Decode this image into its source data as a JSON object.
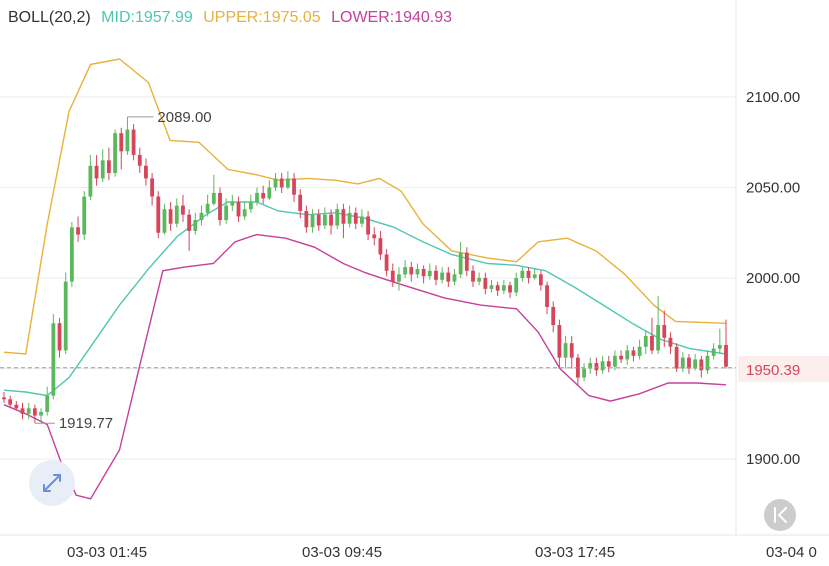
{
  "legend": {
    "name": "BOLL(20,2)",
    "mid": "MID:1957.99",
    "upper": "UPPER:1975.05",
    "lower": "LOWER:1940.93"
  },
  "colors": {
    "up": "#5cb85c",
    "down": "#d6455a",
    "mid": "#4fc7b0",
    "upper": "#e8b23a",
    "lower": "#c5409a",
    "grid": "#eeeeee",
    "text": "#333333"
  },
  "annotations": {
    "high_label": "2089.00",
    "low_label": "1919.77",
    "last_price": "1950.39"
  },
  "controls": {
    "expand_icon": "expand-arrows-icon",
    "back_icon": "back-to-start-icon"
  },
  "chart_data": {
    "type": "candlestick",
    "title": "BOLL(20,2)",
    "y_axis": {
      "ticks": [
        "1900.00",
        "1950.00",
        "2000.00",
        "2050.00",
        "2100.00"
      ],
      "ylim": [
        1875,
        2135
      ],
      "position": "right"
    },
    "x_axis": {
      "ticks": [
        "03-03 01:45",
        "03-03 09:45",
        "03-03 17:45",
        "03-04 0"
      ]
    },
    "grid": true,
    "high": 2089.0,
    "low": 1919.77,
    "last": 1950.39,
    "candles": [
      [
        1934,
        1933,
        1937,
        1931
      ],
      [
        1933,
        1930,
        1935,
        1929
      ],
      [
        1930,
        1928,
        1932,
        1927
      ],
      [
        1928,
        1925,
        1931,
        1922
      ],
      [
        1925,
        1928,
        1931,
        1922
      ],
      [
        1928,
        1924,
        1930,
        1920
      ],
      [
        1924,
        1926,
        1928,
        1921
      ],
      [
        1926,
        1935,
        1940,
        1924
      ],
      [
        1935,
        1975,
        1980,
        1933
      ],
      [
        1975,
        1960,
        1978,
        1956
      ],
      [
        1960,
        1998,
        2003,
        1958
      ],
      [
        1998,
        2028,
        2031,
        1995
      ],
      [
        2028,
        2024,
        2034,
        2020
      ],
      [
        2024,
        2045,
        2048,
        2021
      ],
      [
        2045,
        2062,
        2068,
        2043
      ],
      [
        2062,
        2055,
        2068,
        2051
      ],
      [
        2055,
        2065,
        2071,
        2053
      ],
      [
        2065,
        2058,
        2072,
        2054
      ],
      [
        2058,
        2080,
        2082,
        2056
      ],
      [
        2080,
        2070,
        2083,
        2060
      ],
      [
        2070,
        2082,
        2089,
        2068
      ],
      [
        2082,
        2068,
        2085,
        2065
      ],
      [
        2068,
        2062,
        2072,
        2058
      ],
      [
        2062,
        2055,
        2066,
        2051
      ],
      [
        2055,
        2045,
        2058,
        2040
      ],
      [
        2045,
        2025,
        2048,
        2022
      ],
      [
        2025,
        2038,
        2041,
        2024
      ],
      [
        2038,
        2030,
        2042,
        2026
      ],
      [
        2030,
        2040,
        2044,
        2028
      ],
      [
        2040,
        2035,
        2046,
        2031
      ],
      [
        2035,
        2026,
        2038,
        2015
      ],
      [
        2026,
        2032,
        2036,
        2024
      ],
      [
        2032,
        2036,
        2040,
        2029
      ],
      [
        2036,
        2041,
        2046,
        2034
      ],
      [
        2041,
        2047,
        2057,
        2040
      ],
      [
        2047,
        2032,
        2050,
        2029
      ],
      [
        2032,
        2040,
        2044,
        2030
      ],
      [
        2040,
        2042,
        2046,
        2037
      ],
      [
        2042,
        2034,
        2045,
        2031
      ],
      [
        2034,
        2038,
        2042,
        2032
      ],
      [
        2038,
        2042,
        2046,
        2036
      ],
      [
        2042,
        2047,
        2050,
        2040
      ],
      [
        2047,
        2044,
        2051,
        2041
      ],
      [
        2044,
        2050,
        2054,
        2043
      ],
      [
        2050,
        2055,
        2058,
        2048
      ],
      [
        2055,
        2050,
        2058,
        2047
      ],
      [
        2050,
        2055,
        2059,
        2049
      ],
      [
        2055,
        2046,
        2058,
        2042
      ],
      [
        2046,
        2037,
        2049,
        2033
      ],
      [
        2037,
        2028,
        2040,
        2025
      ],
      [
        2028,
        2035,
        2038,
        2025
      ],
      [
        2035,
        2029,
        2038,
        2026
      ],
      [
        2029,
        2035,
        2039,
        2027
      ],
      [
        2035,
        2029,
        2038,
        2024
      ],
      [
        2029,
        2038,
        2041,
        2027
      ],
      [
        2038,
        2030,
        2041,
        2022
      ],
      [
        2030,
        2036,
        2040,
        2028
      ],
      [
        2036,
        2030,
        2039,
        2027
      ],
      [
        2030,
        2034,
        2038,
        2028
      ],
      [
        2034,
        2024,
        2037,
        2021
      ],
      [
        2024,
        2022,
        2028,
        2018
      ],
      [
        2022,
        2013,
        2026,
        2010
      ],
      [
        2013,
        2004,
        2016,
        2001
      ],
      [
        2004,
        1998,
        2008,
        1995
      ],
      [
        1998,
        2002,
        2006,
        1993
      ],
      [
        2002,
        2006,
        2010,
        2000
      ],
      [
        2006,
        2002,
        2009,
        1998
      ],
      [
        2002,
        2005,
        2008,
        2000
      ],
      [
        2005,
        2001,
        2007,
        1997
      ],
      [
        2001,
        2004,
        2008,
        1999
      ],
      [
        2004,
        1999,
        2007,
        1996
      ],
      [
        1999,
        2003,
        2006,
        1997
      ],
      [
        2003,
        1998,
        2006,
        1995
      ],
      [
        1998,
        2002,
        2005,
        1996
      ],
      [
        2002,
        2014,
        2020,
        2000
      ],
      [
        2014,
        2004,
        2017,
        2001
      ],
      [
        2004,
        1998,
        2007,
        1995
      ],
      [
        1998,
        2000,
        2003,
        1996
      ],
      [
        2000,
        1994,
        2003,
        1991
      ],
      [
        1994,
        1996,
        1999,
        1992
      ],
      [
        1996,
        1993,
        1998,
        1990
      ],
      [
        1993,
        1996,
        1999,
        1991
      ],
      [
        1996,
        1992,
        1998,
        1989
      ],
      [
        1992,
        2000,
        2003,
        1990
      ],
      [
        2000,
        2004,
        2006,
        1998
      ],
      [
        2004,
        2000,
        2006,
        1997
      ],
      [
        2000,
        2002,
        2005,
        1999
      ],
      [
        2002,
        1996,
        2004,
        1993
      ],
      [
        1996,
        1984,
        1998,
        1980
      ],
      [
        1984,
        1974,
        1987,
        1970
      ],
      [
        1974,
        1956,
        1977,
        1950
      ],
      [
        1956,
        1964,
        1968,
        1950
      ],
      [
        1964,
        1956,
        1968,
        1950
      ],
      [
        1956,
        1945,
        1958,
        1941
      ],
      [
        1945,
        1950,
        1953,
        1943
      ],
      [
        1950,
        1953,
        1956,
        1947
      ],
      [
        1953,
        1949,
        1956,
        1946
      ],
      [
        1949,
        1954,
        1957,
        1947
      ],
      [
        1954,
        1951,
        1957,
        1948
      ],
      [
        1951,
        1957,
        1960,
        1949
      ],
      [
        1957,
        1955,
        1960,
        1953
      ],
      [
        1955,
        1960,
        1963,
        1952
      ],
      [
        1960,
        1957,
        1962,
        1954
      ],
      [
        1957,
        1962,
        1966,
        1955
      ],
      [
        1962,
        1968,
        1971,
        1958
      ],
      [
        1968,
        1960,
        1978,
        1958
      ],
      [
        1960,
        1974,
        1990,
        1958
      ],
      [
        1974,
        1967,
        1982,
        1962
      ],
      [
        1967,
        1962,
        1970,
        1958
      ],
      [
        1962,
        1950,
        1964,
        1948
      ],
      [
        1950,
        1956,
        1959,
        1948
      ],
      [
        1956,
        1950,
        1958,
        1947
      ],
      [
        1950,
        1955,
        1958,
        1949
      ],
      [
        1955,
        1949,
        1957,
        1945
      ],
      [
        1949,
        1957,
        1960,
        1947
      ],
      [
        1957,
        1961,
        1964,
        1955
      ],
      [
        1961,
        1963,
        1972,
        1958
      ],
      [
        1963,
        1951,
        1977,
        1950
      ]
    ],
    "mid": [
      [
        0,
        1938
      ],
      [
        0.03,
        1937
      ],
      [
        0.06,
        1935
      ],
      [
        0.09,
        1945
      ],
      [
        0.12,
        1962
      ],
      [
        0.16,
        1985
      ],
      [
        0.2,
        2005
      ],
      [
        0.24,
        2023
      ],
      [
        0.28,
        2035
      ],
      [
        0.31,
        2042
      ],
      [
        0.35,
        2042
      ],
      [
        0.38,
        2037
      ],
      [
        0.42,
        2035
      ],
      [
        0.46,
        2036
      ],
      [
        0.5,
        2033
      ],
      [
        0.54,
        2028
      ],
      [
        0.58,
        2020
      ],
      [
        0.62,
        2013
      ],
      [
        0.67,
        2008
      ],
      [
        0.71,
        2007
      ],
      [
        0.75,
        2004
      ],
      [
        0.79,
        1995
      ],
      [
        0.83,
        1985
      ],
      [
        0.87,
        1975
      ],
      [
        0.91,
        1966
      ],
      [
        0.95,
        1961
      ],
      [
        1,
        1958
      ]
    ],
    "upper": [
      [
        0,
        1959
      ],
      [
        0.03,
        1958
      ],
      [
        0.06,
        2030
      ],
      [
        0.09,
        2092
      ],
      [
        0.12,
        2118
      ],
      [
        0.16,
        2121
      ],
      [
        0.2,
        2108
      ],
      [
        0.23,
        2076
      ],
      [
        0.27,
        2075
      ],
      [
        0.31,
        2060
      ],
      [
        0.35,
        2057
      ],
      [
        0.38,
        2054
      ],
      [
        0.42,
        2055
      ],
      [
        0.46,
        2054
      ],
      [
        0.49,
        2052
      ],
      [
        0.52,
        2055
      ],
      [
        0.55,
        2048
      ],
      [
        0.58,
        2030
      ],
      [
        0.62,
        2015
      ],
      [
        0.67,
        2011
      ],
      [
        0.71,
        2009
      ],
      [
        0.74,
        2020
      ],
      [
        0.78,
        2022
      ],
      [
        0.82,
        2015
      ],
      [
        0.86,
        2002
      ],
      [
        0.9,
        1985
      ],
      [
        0.93,
        1976
      ],
      [
        1,
        1975
      ]
    ],
    "lower": [
      [
        0,
        1930
      ],
      [
        0.03,
        1925
      ],
      [
        0.06,
        1919
      ],
      [
        0.08,
        1897
      ],
      [
        0.1,
        1880
      ],
      [
        0.12,
        1878
      ],
      [
        0.16,
        1905
      ],
      [
        0.19,
        1955
      ],
      [
        0.22,
        2004
      ],
      [
        0.25,
        2006
      ],
      [
        0.29,
        2008
      ],
      [
        0.32,
        2020
      ],
      [
        0.35,
        2024
      ],
      [
        0.39,
        2022
      ],
      [
        0.43,
        2017
      ],
      [
        0.47,
        2008
      ],
      [
        0.5,
        2003
      ],
      [
        0.53,
        1999
      ],
      [
        0.57,
        1994
      ],
      [
        0.61,
        1989
      ],
      [
        0.66,
        1985
      ],
      [
        0.71,
        1983
      ],
      [
        0.74,
        1970
      ],
      [
        0.77,
        1950
      ],
      [
        0.81,
        1935
      ],
      [
        0.84,
        1932
      ],
      [
        0.88,
        1936
      ],
      [
        0.92,
        1942
      ],
      [
        0.96,
        1942
      ],
      [
        1,
        1941
      ]
    ]
  }
}
